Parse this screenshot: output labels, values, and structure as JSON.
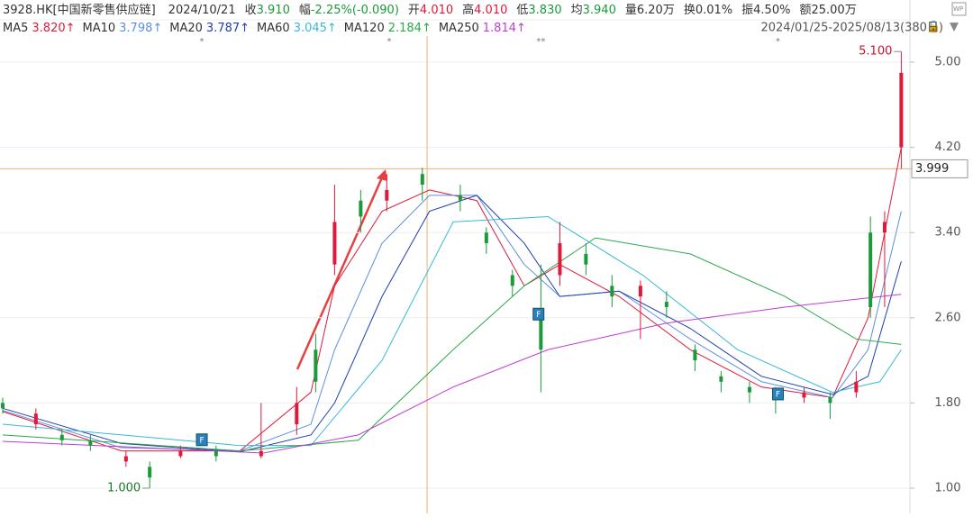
{
  "chart_data": {
    "type": "candlestick",
    "quote": {
      "symbol": "3928.HK[中国新零售供应链]",
      "date": "2024/10/21",
      "items": [
        {
          "label": "收",
          "value": "3.910",
          "color": "#1a9a3a"
        },
        {
          "label": "幅",
          "value": "-2.25%(-0.090)",
          "color": "#1a9a3a"
        },
        {
          "label": "开",
          "value": "4.010",
          "color": "#e0193b"
        },
        {
          "label": "高",
          "value": "4.010",
          "color": "#e0193b"
        },
        {
          "label": "低",
          "value": "3.830",
          "color": "#1a9a3a"
        },
        {
          "label": "均",
          "value": "3.940",
          "color": "#1a9a3a"
        },
        {
          "label": "量",
          "value": "6.20万",
          "color": "#333333"
        },
        {
          "label": "换",
          "value": "0.01%",
          "color": "#333333"
        },
        {
          "label": "振",
          "value": "4.50%",
          "color": "#333333"
        },
        {
          "label": "额",
          "value": "25.00万",
          "color": "#333333"
        }
      ]
    },
    "range_label": "2024/01/25-2025/08/13(380日)",
    "xlim": [
      0,
      380
    ],
    "ylim": [
      0.763,
      5.584
    ],
    "yticks": [
      {
        "value": 1,
        "label": "1.00"
      },
      {
        "value": 1.8,
        "label": "1.80"
      },
      {
        "value": 2.6,
        "label": "2.60"
      },
      {
        "value": 3.4,
        "label": "3.40"
      },
      {
        "value": 4.2,
        "label": "4.20"
      },
      {
        "value": 5,
        "label": "5.00"
      }
    ],
    "grid": true,
    "up_color": "#e0193b",
    "down_color": "#1a9a3a",
    "x": [
      0,
      14,
      25,
      37,
      52,
      62,
      75,
      90,
      109,
      124,
      132,
      140,
      151,
      162,
      177,
      193,
      204,
      215,
      227,
      235,
      246,
      257,
      269,
      280,
      292,
      303,
      315,
      326,
      338,
      349,
      360,
      366,
      372,
      379
    ],
    "open": [
      1.8,
      1.6,
      1.5,
      1.45,
      1.25,
      1.2,
      1.3,
      1.35,
      1.3,
      1.6,
      2.3,
      3.1,
      3.7,
      3.7,
      3.95,
      3.75,
      3.4,
      3.0,
      2.6,
      3.0,
      3.2,
      2.9,
      2.8,
      2.75,
      2.3,
      2.05,
      1.95,
      1.9,
      1.85,
      1.85,
      1.9,
      3.4,
      3.4,
      4.2
    ],
    "high": [
      1.85,
      1.75,
      1.55,
      1.5,
      1.35,
      1.25,
      1.4,
      1.4,
      1.8,
      1.95,
      2.45,
      3.85,
      3.8,
      3.95,
      4.01,
      3.85,
      3.45,
      3.05,
      3.1,
      3.5,
      3.3,
      3.0,
      2.95,
      2.85,
      2.35,
      2.1,
      2.0,
      1.95,
      1.95,
      1.9,
      2.1,
      3.55,
      3.6,
      5.1
    ],
    "low": [
      1.7,
      1.55,
      1.4,
      1.35,
      1.2,
      1.0,
      1.28,
      1.25,
      1.28,
      1.5,
      1.9,
      3.0,
      3.4,
      3.6,
      3.7,
      3.6,
      3.2,
      2.8,
      1.9,
      2.9,
      3.0,
      2.7,
      2.4,
      2.6,
      2.1,
      1.9,
      1.8,
      1.7,
      1.8,
      1.65,
      1.85,
      2.6,
      2.7,
      4.0
    ],
    "close": [
      1.75,
      1.7,
      1.45,
      1.4,
      1.3,
      1.1,
      1.35,
      1.3,
      1.35,
      1.8,
      2.0,
      3.5,
      3.55,
      3.8,
      3.85,
      3.7,
      3.3,
      2.9,
      2.3,
      3.3,
      3.1,
      2.8,
      2.9,
      2.7,
      2.2,
      2.0,
      1.9,
      1.85,
      1.9,
      1.8,
      2.0,
      2.7,
      3.5,
      4.9
    ],
    "series": [
      {
        "name": "MA5",
        "value_label": "3.820↑",
        "color": "#e0193b",
        "x": [
          0,
          50,
          100,
          130,
          140,
          160,
          180,
          200,
          220,
          235,
          260,
          290,
          320,
          350,
          365,
          379
        ],
        "values": [
          1.72,
          1.35,
          1.35,
          1.9,
          2.9,
          3.6,
          3.8,
          3.7,
          2.9,
          3.1,
          2.8,
          2.3,
          1.95,
          1.85,
          2.6,
          4.2
        ]
      },
      {
        "name": "MA10",
        "value_label": "3.798↑",
        "color": "#5b8fe0",
        "x": [
          0,
          50,
          100,
          130,
          140,
          160,
          180,
          200,
          220,
          235,
          260,
          290,
          320,
          350,
          365,
          379
        ],
        "values": [
          1.73,
          1.38,
          1.35,
          1.6,
          2.3,
          3.3,
          3.75,
          3.75,
          3.1,
          2.8,
          2.85,
          2.4,
          2.0,
          1.85,
          2.3,
          3.6
        ]
      },
      {
        "name": "MA20",
        "value_label": "3.787↑",
        "color": "#1c3fb0",
        "x": [
          0,
          50,
          100,
          130,
          140,
          160,
          180,
          200,
          220,
          235,
          260,
          290,
          320,
          350,
          365,
          379
        ],
        "values": [
          1.75,
          1.42,
          1.34,
          1.5,
          1.8,
          2.8,
          3.6,
          3.75,
          3.3,
          2.8,
          2.85,
          2.5,
          2.05,
          1.88,
          2.05,
          3.13
        ]
      },
      {
        "name": "MA60",
        "value_label": "3.045↑",
        "color": "#37b8d8",
        "x": [
          0,
          100,
          130,
          160,
          190,
          230,
          270,
          310,
          350,
          370,
          379
        ],
        "values": [
          1.6,
          1.4,
          1.4,
          2.2,
          3.5,
          3.55,
          3.0,
          2.3,
          1.9,
          2.0,
          2.3
        ]
      },
      {
        "name": "MA120",
        "value_label": "2.184↑",
        "color": "#2aa84a",
        "x": [
          0,
          100,
          150,
          190,
          220,
          250,
          290,
          330,
          360,
          379
        ],
        "values": [
          1.5,
          1.35,
          1.45,
          2.3,
          2.9,
          3.35,
          3.2,
          2.8,
          2.4,
          2.35
        ]
      },
      {
        "name": "MA250",
        "value_label": "1.814↑",
        "color": "#c23bd6",
        "x": [
          0,
          110,
          150,
          190,
          230,
          280,
          330,
          379
        ],
        "values": [
          1.44,
          1.33,
          1.5,
          1.95,
          2.3,
          2.55,
          2.7,
          2.82
        ]
      }
    ],
    "max_label": {
      "value": 5.1,
      "label": "5.100",
      "x": 379
    },
    "min_label": {
      "value": 1,
      "label": "1.000",
      "x": 62
    },
    "crosshair": {
      "x": 179,
      "value": 3.999,
      "label": "3.999"
    },
    "event_marks": [
      {
        "x": 84,
        "label": "*"
      },
      {
        "x": 163,
        "label": "*"
      },
      {
        "x": 227,
        "label": "**"
      },
      {
        "x": 327,
        "label": "*"
      }
    ],
    "flags": [
      {
        "x": 84,
        "value": 1.45,
        "label": "F"
      },
      {
        "x": 226,
        "value": 2.63,
        "label": "F"
      },
      {
        "x": 327,
        "value": 1.88,
        "label": "F"
      }
    ]
  }
}
